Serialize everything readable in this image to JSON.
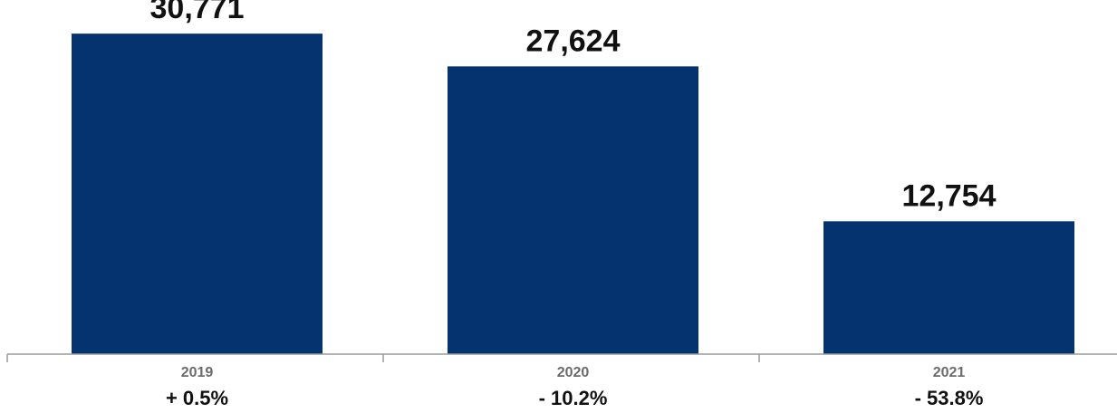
{
  "chart_data": {
    "type": "bar",
    "categories": [
      "2019",
      "2020",
      "2021"
    ],
    "values": [
      30771,
      27624,
      12754
    ],
    "value_labels": [
      "30,771",
      "27,624",
      "12,754"
    ],
    "changes": [
      "+ 0.5%",
      "- 10.2%",
      "- 53.8%"
    ],
    "title": "",
    "xlabel": "",
    "ylabel": "",
    "ylim": [
      0,
      34000
    ],
    "grid": false,
    "legend": "none",
    "bar_color": "#04336F"
  }
}
